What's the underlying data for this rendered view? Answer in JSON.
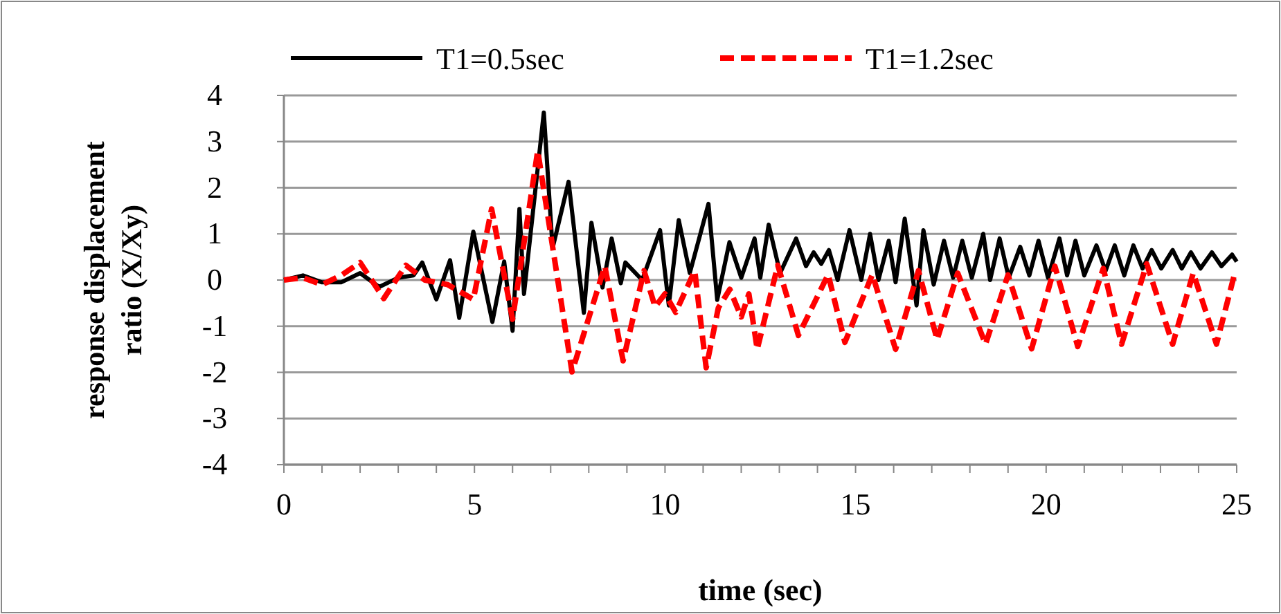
{
  "chart_data": {
    "type": "line",
    "xlabel": "time (sec)",
    "ylabel": "response displacement ratio (X/Xy)",
    "xlim": [
      0,
      25
    ],
    "ylim": [
      -4,
      4
    ],
    "xticks": [
      0,
      {
        "value": 1,
        "label": null
      },
      {
        "value": 2,
        "label": null
      },
      {
        "value": 3,
        "label": null
      },
      {
        "value": 4,
        "label": null
      },
      5,
      {
        "value": 6,
        "label": null
      },
      {
        "value": 7,
        "label": null
      },
      {
        "value": 8,
        "label": null
      },
      {
        "value": 9,
        "label": null
      },
      10,
      {
        "value": 11,
        "label": null
      },
      {
        "value": 12,
        "label": null
      },
      {
        "value": 13,
        "label": null
      },
      {
        "value": 14,
        "label": null
      },
      15,
      {
        "value": 16,
        "label": null
      },
      {
        "value": 17,
        "label": null
      },
      {
        "value": 18,
        "label": null
      },
      {
        "value": 19,
        "label": null
      },
      20,
      {
        "value": 21,
        "label": null
      },
      {
        "value": 22,
        "label": null
      },
      {
        "value": 23,
        "label": null
      },
      {
        "value": 24,
        "label": null
      },
      25
    ],
    "yticks": [
      -4,
      -3,
      -2,
      -1,
      0,
      1,
      2,
      3,
      4
    ],
    "grid": "y",
    "legend": "top",
    "marker": "none",
    "series": [
      {
        "name": "T1=0.5sec",
        "color": "#000000",
        "line_style": "solid",
        "x": [
          0,
          0.5,
          1,
          1.5,
          2,
          2.5,
          3,
          3.4,
          3.63,
          4,
          4.36,
          4.6,
          4.97,
          5.47,
          5.78,
          6,
          6.18,
          6.3,
          6.82,
          7.05,
          7.47,
          7.87,
          8.07,
          8.36,
          8.6,
          8.84,
          8.96,
          9.4,
          9.87,
          10.1,
          10.36,
          10.65,
          11.14,
          11.37,
          11.69,
          12,
          12.35,
          12.5,
          12.72,
          13.02,
          13.44,
          13.7,
          13.9,
          14.1,
          14.3,
          14.53,
          14.84,
          15.15,
          15.38,
          15.6,
          15.87,
          16.05,
          16.29,
          16.6,
          16.78,
          17.05,
          17.32,
          17.56,
          17.8,
          18.05,
          18.35,
          18.53,
          18.78,
          19.02,
          19.32,
          19.56,
          19.8,
          20.05,
          20.35,
          20.55,
          20.77,
          21,
          21.32,
          21.56,
          21.8,
          22.05,
          22.29,
          22.53,
          22.77,
          23.02,
          23.32,
          23.56,
          23.8,
          24.05,
          24.35,
          24.6,
          24.88,
          25
        ],
        "values": [
          0,
          0.1,
          -0.05,
          -0.05,
          0.15,
          -0.15,
          0.05,
          0.1,
          0.38,
          -0.42,
          0.43,
          -0.82,
          1.05,
          -0.91,
          0.4,
          -1.1,
          1.54,
          -0.3,
          3.63,
          0.69,
          2.13,
          -0.71,
          1.24,
          -0.16,
          0.9,
          -0.07,
          0.38,
          0,
          1.08,
          -0.55,
          1.3,
          0.15,
          1.65,
          -0.43,
          0.82,
          0.05,
          0.9,
          0.05,
          1.2,
          0.15,
          0.9,
          0.3,
          0.6,
          0.35,
          0.65,
          0,
          1.08,
          0,
          1,
          0,
          0.85,
          -0.05,
          1.33,
          -0.55,
          1.08,
          -0.1,
          0.85,
          0.05,
          0.85,
          0.05,
          1,
          0,
          0.9,
          0.05,
          0.72,
          0.1,
          0.85,
          0.05,
          0.9,
          0.1,
          0.85,
          0.1,
          0.75,
          0.2,
          0.75,
          0.1,
          0.75,
          0.25,
          0.65,
          0.25,
          0.65,
          0.25,
          0.6,
          0.25,
          0.6,
          0.3,
          0.55,
          0.4
        ]
      },
      {
        "name": "T1=1.2sec",
        "color": "#ff0000",
        "line_style": "dashed",
        "x": [
          0,
          0.5,
          1,
          1.5,
          2,
          2.62,
          3.2,
          3.7,
          4.3,
          4.97,
          5.45,
          6,
          6.66,
          7.56,
          8.42,
          8.9,
          9.45,
          9.74,
          10,
          10.28,
          10.78,
          11.08,
          11.4,
          11.7,
          12,
          12.2,
          12.42,
          12.96,
          13.5,
          14.28,
          14.72,
          15.44,
          16.05,
          16.65,
          17.14,
          17.68,
          18.41,
          19,
          19.62,
          20.23,
          20.83,
          21.5,
          21.98,
          22.64,
          23.32,
          23.86,
          24.47,
          24.95
        ],
        "values": [
          0,
          0.05,
          -0.1,
          0.1,
          0.38,
          -0.4,
          0.32,
          0,
          -0.1,
          -0.42,
          1.54,
          -0.85,
          2.8,
          -1.99,
          0.3,
          -1.75,
          0.2,
          -0.58,
          -0.3,
          -0.7,
          0.2,
          -1.9,
          -0.6,
          -0.2,
          -0.8,
          -0.3,
          -1.5,
          0.32,
          -1.2,
          0.12,
          -1.35,
          0.12,
          -1.5,
          0.2,
          -1.29,
          0.15,
          -1.39,
          0.11,
          -1.49,
          0.3,
          -1.44,
          0.25,
          -1.39,
          0.35,
          -1.39,
          0.15,
          -1.39,
          0.15
        ]
      }
    ]
  }
}
